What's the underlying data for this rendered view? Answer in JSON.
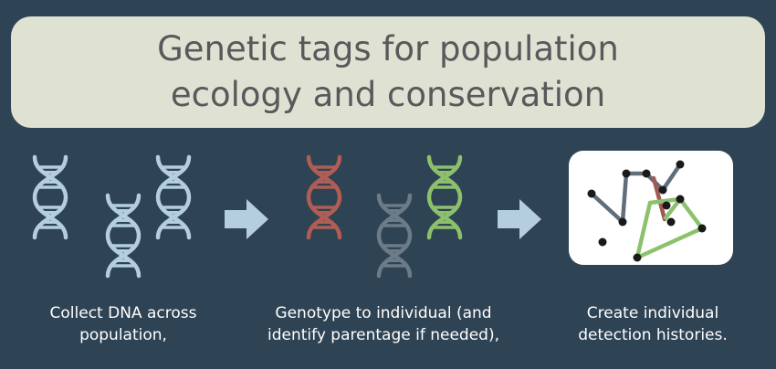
{
  "title": "Genetic tags for population ecology and conservation",
  "steps": [
    {
      "caption": "Collect DNA across population,"
    },
    {
      "caption": "Genotype to individual (and identify parentage if needed),"
    },
    {
      "caption": "Create individual detection histories."
    }
  ],
  "colors": {
    "background": "#2e4354",
    "title_box": "#dfe2d3",
    "dna_light_blue": "#b4cedd",
    "dna_red": "#b05d55",
    "dna_gray": "#6b7b87",
    "dna_green": "#8dc06d",
    "arrow": "#b4cedd",
    "network_gray": "#5f6e7a",
    "network_red": "#a05a55",
    "network_green": "#8cc26d",
    "node": "#1a1a1a"
  },
  "icons": [
    "dna-helix-icon",
    "right-arrow-icon",
    "network-graph-icon"
  ]
}
